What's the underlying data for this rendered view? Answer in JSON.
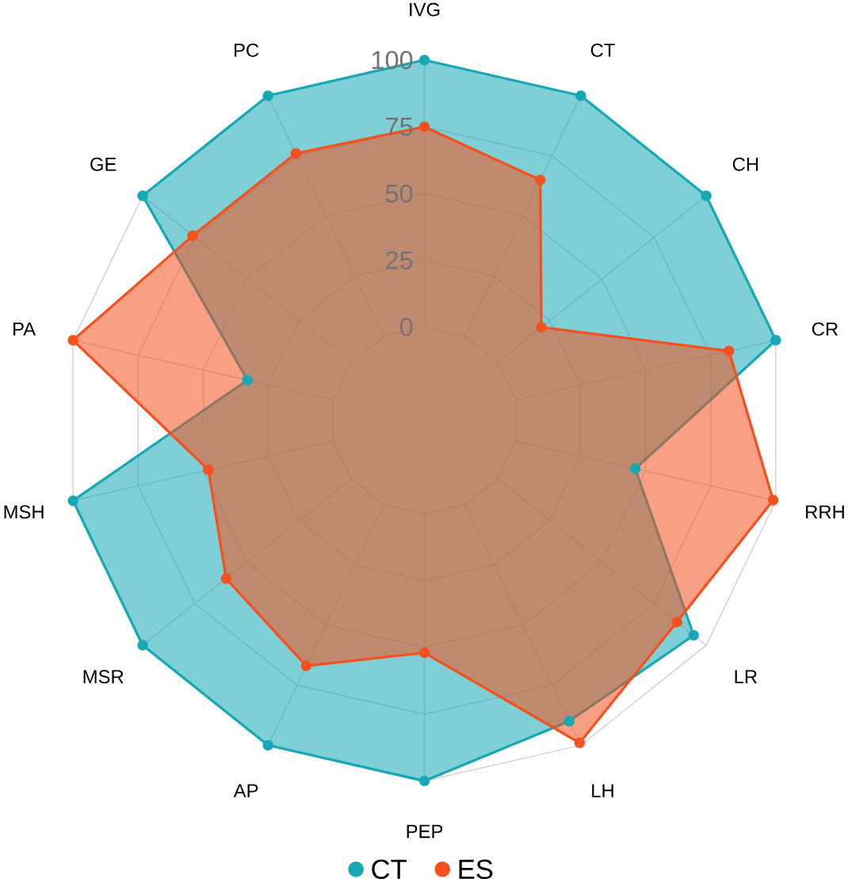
{
  "chart_data": {
    "type": "radar",
    "categories": [
      "IVG",
      "CT",
      "CH",
      "CR",
      "RRH",
      "LR",
      "LH",
      "PEP",
      "AP",
      "MSR",
      "MSH",
      "PA",
      "GE",
      "PC"
    ],
    "series": [
      {
        "name": "CT",
        "color": "#16a9b5",
        "values": [
          100,
          100,
          100,
          100,
          46,
          94,
          90,
          100,
          100,
          100,
          100,
          33,
          100,
          100
        ]
      },
      {
        "name": "ES",
        "color": "#f4511e",
        "values": [
          75,
          65,
          21,
          82,
          99,
          86,
          99,
          52,
          67,
          60,
          48,
          100,
          76,
          76
        ]
      }
    ],
    "ylim": [
      -35,
      100
    ],
    "yticks": [
      0,
      25,
      50,
      75,
      100
    ],
    "grid": true,
    "legend": "bottom",
    "marker": "circle"
  }
}
